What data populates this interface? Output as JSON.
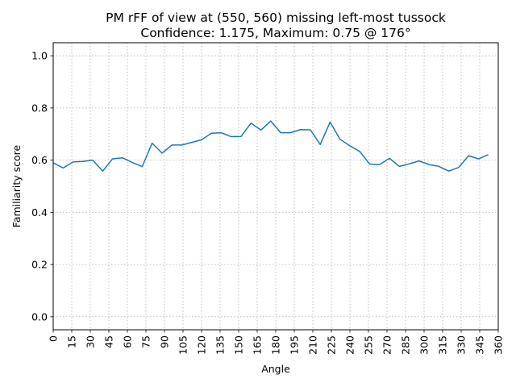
{
  "chart_data": {
    "type": "line",
    "title": "PM rFF of view at (550, 560) missing left-most tussock",
    "subtitle": "Confidence: 1.175, Maximum: 0.75 @ 176°",
    "xlabel": "Angle",
    "ylabel": "Familiarity score",
    "xlim": [
      0,
      360
    ],
    "ylim": [
      -0.05,
      1.05
    ],
    "grid": true,
    "line_color": "#1f77b4",
    "xticks": [
      0,
      15,
      30,
      45,
      60,
      75,
      90,
      105,
      120,
      135,
      150,
      165,
      180,
      195,
      210,
      225,
      240,
      255,
      270,
      285,
      300,
      315,
      330,
      345,
      360
    ],
    "yticks": [
      0.0,
      0.2,
      0.4,
      0.6,
      0.8,
      1.0
    ],
    "ytick_labels": [
      "0.0",
      "0.2",
      "0.4",
      "0.6",
      "0.8",
      "1.0"
    ],
    "series": [
      {
        "x": [
          0,
          8,
          16,
          24,
          32,
          40,
          48,
          56,
          64,
          72,
          80,
          88,
          96,
          104,
          112,
          120,
          128,
          136,
          144,
          152,
          160,
          168,
          176,
          184,
          192,
          200,
          208,
          216,
          224,
          232,
          240,
          248,
          256,
          264,
          272,
          280,
          288,
          296,
          304,
          312,
          320,
          328,
          336,
          344,
          352
        ],
        "values": [
          0.59,
          0.57,
          0.593,
          0.595,
          0.6,
          0.558,
          0.605,
          0.609,
          0.591,
          0.575,
          0.665,
          0.627,
          0.658,
          0.658,
          0.668,
          0.678,
          0.703,
          0.705,
          0.69,
          0.691,
          0.742,
          0.715,
          0.75,
          0.705,
          0.705,
          0.717,
          0.716,
          0.66,
          0.746,
          0.68,
          0.655,
          0.633,
          0.585,
          0.583,
          0.607,
          0.576,
          0.586,
          0.597,
          0.583,
          0.576,
          0.558,
          0.572,
          0.617,
          0.605,
          0.621
        ]
      }
    ]
  }
}
